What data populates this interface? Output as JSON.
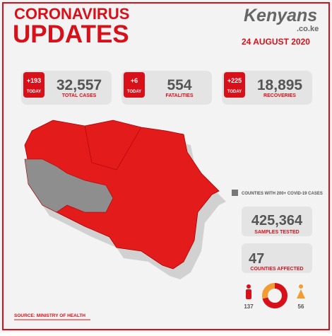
{
  "header": {
    "title_line1": "CORONAVIRUS",
    "title_line2": "UPDATES",
    "brand": "Kenyans",
    "brand_suffix": ".co.ke",
    "date": "24 AUGUST 2020"
  },
  "stats": [
    {
      "today": "+193",
      "today_label": "TODAY",
      "value": "32,557",
      "label": "TOTAL CASES"
    },
    {
      "today": "+6",
      "today_label": "TODAY",
      "value": "554",
      "label": "FATALITIES"
    },
    {
      "today": "+225",
      "today_label": "TODAY",
      "value": "18,895",
      "label": "RECOVERIES"
    }
  ],
  "legend": "COUNTIES WITH 200+ COVID-19 CASES",
  "samples": {
    "value": "425,364",
    "label": "SAMPLES TESTED"
  },
  "counties": {
    "value": "47",
    "label": "COUNTIES AFFECTED"
  },
  "gender": {
    "male": 137,
    "female": 56
  },
  "source": "SOURCE: MINISTRY OF HEALTH"
}
